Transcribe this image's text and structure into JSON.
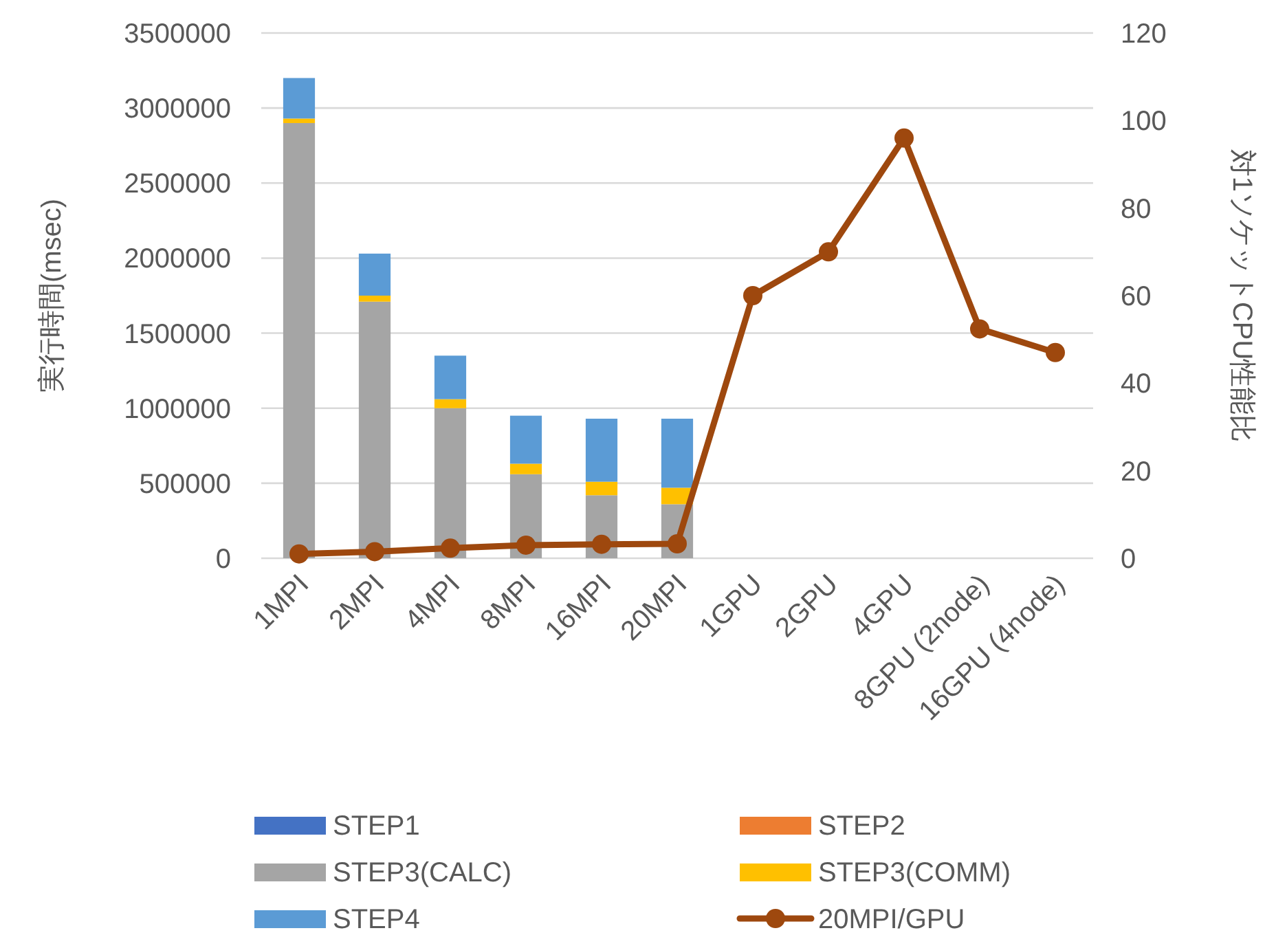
{
  "chart_data": {
    "type": "bar",
    "stacked": true,
    "categories": [
      "1MPI",
      "2MPI",
      "4MPI",
      "8MPI",
      "16MPI",
      "20MPI",
      "1GPU",
      "2GPU",
      "4GPU",
      "8GPU (2node)",
      "16GPU (4node)"
    ],
    "ylabel": "実行時間(msec)",
    "y2label": "対1ソケットCPU性能比",
    "ylim": [
      0,
      3500000
    ],
    "yticks": [
      0,
      500000,
      1000000,
      1500000,
      2000000,
      2500000,
      3000000,
      3500000
    ],
    "y2lim": [
      0,
      120
    ],
    "y2ticks": [
      0,
      20,
      40,
      60,
      80,
      100,
      120
    ],
    "grid": "y",
    "legend": "bottom",
    "marker": "circle",
    "series": [
      {
        "name": "STEP1",
        "color": "#4472c4",
        "values": [
          0,
          0,
          0,
          0,
          0,
          0,
          0,
          0,
          0,
          0,
          0
        ]
      },
      {
        "name": "STEP2",
        "color": "#ed7d31",
        "values": [
          0,
          0,
          0,
          0,
          0,
          0,
          0,
          0,
          0,
          0,
          0
        ]
      },
      {
        "name": "STEP3(CALC)",
        "color": "#a5a5a5",
        "values": [
          2900000,
          1710000,
          1000000,
          560000,
          420000,
          360000,
          null,
          null,
          null,
          null,
          null
        ]
      },
      {
        "name": "STEP3(COMM)",
        "color": "#ffc000",
        "values": [
          30000,
          40000,
          60000,
          70000,
          90000,
          110000,
          null,
          null,
          null,
          null,
          null
        ]
      },
      {
        "name": "STEP4",
        "color": "#5b9bd5",
        "values": [
          270000,
          280000,
          290000,
          320000,
          420000,
          460000,
          null,
          null,
          null,
          null,
          null
        ]
      },
      {
        "name": "20MPI/GPU",
        "type": "line",
        "axis": "y2",
        "color": "#9e480e",
        "values": [
          1,
          1.5,
          2.3,
          3,
          3.2,
          3.3,
          60,
          70,
          96,
          52.4,
          47
        ]
      }
    ]
  }
}
